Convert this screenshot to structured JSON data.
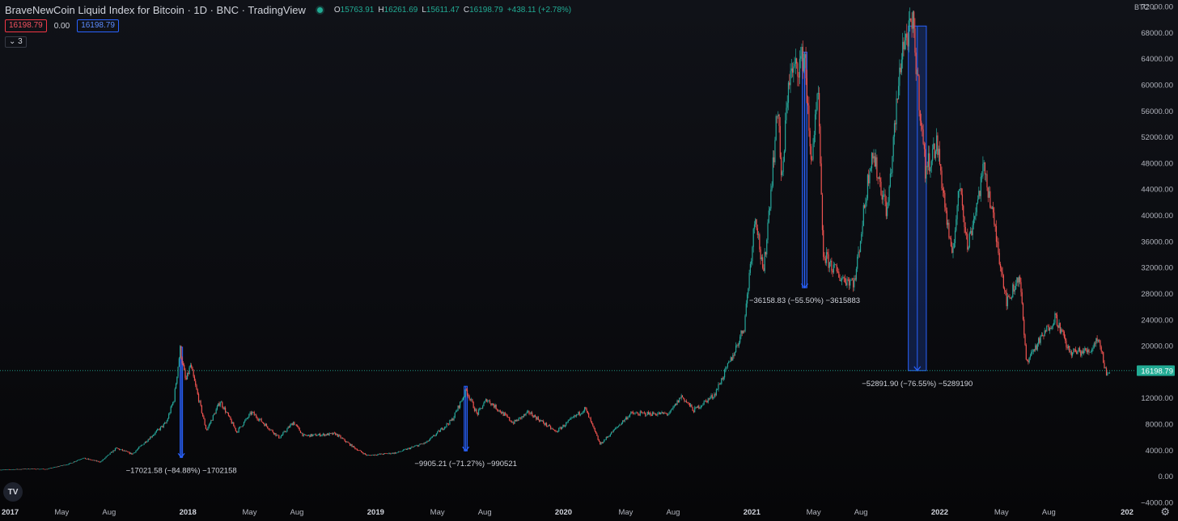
{
  "header": {
    "title": "BraveNewCoin Liquid Index for Bitcoin · 1D · BNC · TradingView",
    "ohlc": [
      {
        "k": "O",
        "v": "15763.91"
      },
      {
        "k": "H",
        "v": "16261.69"
      },
      {
        "k": "L",
        "v": "15611.47"
      },
      {
        "k": "C",
        "v": "16198.79"
      },
      {
        "k": "",
        "v": "+438.11 (+2.78%)"
      }
    ],
    "bid": "16198.79",
    "spread": "0.00",
    "ask": "16198.79",
    "indicators_toggle": "3",
    "currency": "BTC"
  },
  "colors": {
    "up": "#26a69a",
    "down": "#ef5350",
    "measure": "#2962ff",
    "price_line": "#22ab94",
    "axis_text": "#b2b5be"
  },
  "logo_text": "TV",
  "chart_data": {
    "type": "candlestick",
    "last_price": 16198.79,
    "ylim": [
      -4000,
      72000
    ],
    "yticks": [
      -4000,
      0,
      4000,
      8000,
      12000,
      16000,
      20000,
      24000,
      28000,
      32000,
      36000,
      40000,
      44000,
      48000,
      52000,
      56000,
      60000,
      64000,
      68000,
      72000
    ],
    "ytick_labels": [
      "−4000.00",
      "0.00",
      "4000.00",
      "8000.00",
      "12000.00",
      "",
      "20000.00",
      "24000.00",
      "28000.00",
      "32000.00",
      "36000.00",
      "40000.00",
      "44000.00",
      "48000.00",
      "52000.00",
      "56000.00",
      "60000.00",
      "64000.00",
      "68000.00",
      "72000.00"
    ],
    "xlim": [
      "2017-01-01",
      "2022-12-31"
    ],
    "xticks": [
      {
        "date": "2017-01-01",
        "label": "2017"
      },
      {
        "date": "2017-05-01",
        "label": "May"
      },
      {
        "date": "2017-08-01",
        "label": "Aug"
      },
      {
        "date": "2018-01-01",
        "label": "2018"
      },
      {
        "date": "2018-05-01",
        "label": "May"
      },
      {
        "date": "2018-08-01",
        "label": "Aug"
      },
      {
        "date": "2019-01-01",
        "label": "2019"
      },
      {
        "date": "2019-05-01",
        "label": "May"
      },
      {
        "date": "2019-08-01",
        "label": "Aug"
      },
      {
        "date": "2020-01-01",
        "label": "2020"
      },
      {
        "date": "2020-05-01",
        "label": "May"
      },
      {
        "date": "2020-08-01",
        "label": "Aug"
      },
      {
        "date": "2021-01-01",
        "label": "2021"
      },
      {
        "date": "2021-05-01",
        "label": "May"
      },
      {
        "date": "2021-08-01",
        "label": "Aug"
      },
      {
        "date": "2022-01-01",
        "label": "2022"
      },
      {
        "date": "2022-05-01",
        "label": "May"
      },
      {
        "date": "2022-08-01",
        "label": "Aug"
      },
      {
        "date": "2022-12-31",
        "label": "202"
      }
    ],
    "price_path": [
      [
        "2017-01-01",
        1000
      ],
      [
        "2017-03-01",
        1150
      ],
      [
        "2017-04-01",
        1100
      ],
      [
        "2017-05-15",
        1900
      ],
      [
        "2017-06-10",
        2800
      ],
      [
        "2017-07-15",
        2200
      ],
      [
        "2017-08-15",
        4300
      ],
      [
        "2017-09-15",
        3400
      ],
      [
        "2017-10-20",
        6000
      ],
      [
        "2017-11-20",
        8200
      ],
      [
        "2017-12-05",
        11800
      ],
      [
        "2017-12-17",
        19500
      ],
      [
        "2017-12-28",
        14500
      ],
      [
        "2018-01-06",
        17000
      ],
      [
        "2018-02-06",
        7000
      ],
      [
        "2018-03-05",
        11500
      ],
      [
        "2018-04-06",
        6800
      ],
      [
        "2018-05-05",
        9800
      ],
      [
        "2018-06-28",
        5900
      ],
      [
        "2018-07-25",
        8300
      ],
      [
        "2018-08-14",
        6200
      ],
      [
        "2018-10-15",
        6500
      ],
      [
        "2018-11-20",
        4400
      ],
      [
        "2018-12-15",
        3200
      ],
      [
        "2019-02-10",
        3600
      ],
      [
        "2019-04-10",
        5200
      ],
      [
        "2019-05-30",
        8700
      ],
      [
        "2019-06-26",
        13200
      ],
      [
        "2019-07-17",
        9500
      ],
      [
        "2019-08-05",
        11800
      ],
      [
        "2019-09-25",
        8200
      ],
      [
        "2019-10-26",
        9800
      ],
      [
        "2019-12-17",
        6800
      ],
      [
        "2020-02-12",
        10400
      ],
      [
        "2020-03-12",
        4900
      ],
      [
        "2020-05-10",
        9600
      ],
      [
        "2020-07-25",
        9600
      ],
      [
        "2020-08-17",
        12300
      ],
      [
        "2020-09-10",
        10100
      ],
      [
        "2020-10-20",
        12500
      ],
      [
        "2020-11-25",
        18500
      ],
      [
        "2020-12-17",
        23000
      ],
      [
        "2021-01-08",
        40500
      ],
      [
        "2021-01-23",
        30500
      ],
      [
        "2021-02-21",
        57000
      ],
      [
        "2021-02-28",
        44000
      ],
      [
        "2021-03-13",
        61000
      ],
      [
        "2021-04-14",
        64500
      ],
      [
        "2021-04-25",
        48000
      ],
      [
        "2021-05-10",
        58000
      ],
      [
        "2021-05-19",
        34000
      ],
      [
        "2021-06-22",
        30500
      ],
      [
        "2021-07-20",
        29800
      ],
      [
        "2021-08-22",
        50000
      ],
      [
        "2021-09-21",
        40500
      ],
      [
        "2021-10-20",
        66000
      ],
      [
        "2021-11-10",
        68900
      ],
      [
        "2021-12-04",
        47000
      ],
      [
        "2021-12-27",
        51000
      ],
      [
        "2022-01-24",
        33500
      ],
      [
        "2022-02-10",
        45000
      ],
      [
        "2022-02-24",
        35000
      ],
      [
        "2022-03-29",
        47500
      ],
      [
        "2022-05-12",
        26500
      ],
      [
        "2022-06-05",
        31000
      ],
      [
        "2022-06-18",
        17600
      ],
      [
        "2022-08-14",
        24500
      ],
      [
        "2022-09-10",
        19000
      ],
      [
        "2022-10-20",
        19200
      ],
      [
        "2022-11-05",
        21400
      ],
      [
        "2022-11-21",
        15600
      ],
      [
        "2022-11-28",
        16198.79
      ]
    ],
    "measurements": [
      {
        "start": "2017-12-17",
        "end": "2017-12-19",
        "high": 19800,
        "low": 2900,
        "label": "−17021.58 (−84.88%) −1702158"
      },
      {
        "start": "2019-06-22",
        "end": "2019-06-28",
        "high": 13800,
        "low": 3900,
        "label": "−9905.21 (−71.27%) −990521"
      },
      {
        "start": "2021-04-09",
        "end": "2021-04-18",
        "high": 65000,
        "low": 28900,
        "label": "−36158.83 (−55.50%) −3615883"
      },
      {
        "start": "2021-11-01",
        "end": "2021-12-06",
        "high": 69000,
        "low": 16200,
        "label": "−52891.90 (−76.55%) −5289190"
      }
    ]
  }
}
